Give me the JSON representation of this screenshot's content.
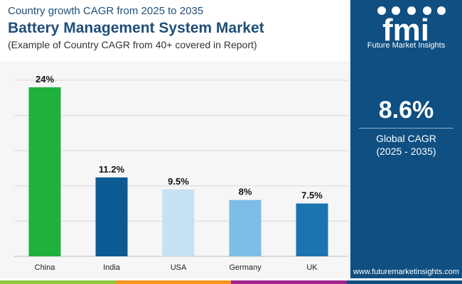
{
  "header": {
    "subtitle": "Country growth CAGR from 2025 to 2035",
    "title": "Battery Management System Market",
    "note": "(Example of Country CAGR from 40+ covered in Report)"
  },
  "chart_data": {
    "type": "bar",
    "categories": [
      "China",
      "India",
      "USA",
      "Germany",
      "UK"
    ],
    "values": [
      24,
      11.2,
      9.5,
      8,
      7.5
    ],
    "labels": [
      "24%",
      "11.2%",
      "9.5%",
      "8%",
      "7.5%"
    ],
    "colors": [
      "#1fb13b",
      "#0b5a94",
      "#c5e1f3",
      "#7dbde6",
      "#1a74b0"
    ],
    "ylim": [
      0,
      25
    ],
    "title": "Battery Management System Market",
    "xlabel": "",
    "ylabel": "",
    "grid": true
  },
  "sidebar": {
    "logo_text": "fmi",
    "logo_tagline": "Future Market Insights",
    "cagr_value": "8.6%",
    "cagr_label": "Global CAGR",
    "cagr_period": "(2025 - 2035)",
    "website": "www.futuremarketinsights.com"
  },
  "footer": {
    "colors": [
      "#8dc63f",
      "#f7941d",
      "#a3238e",
      "#0f4f82"
    ]
  }
}
